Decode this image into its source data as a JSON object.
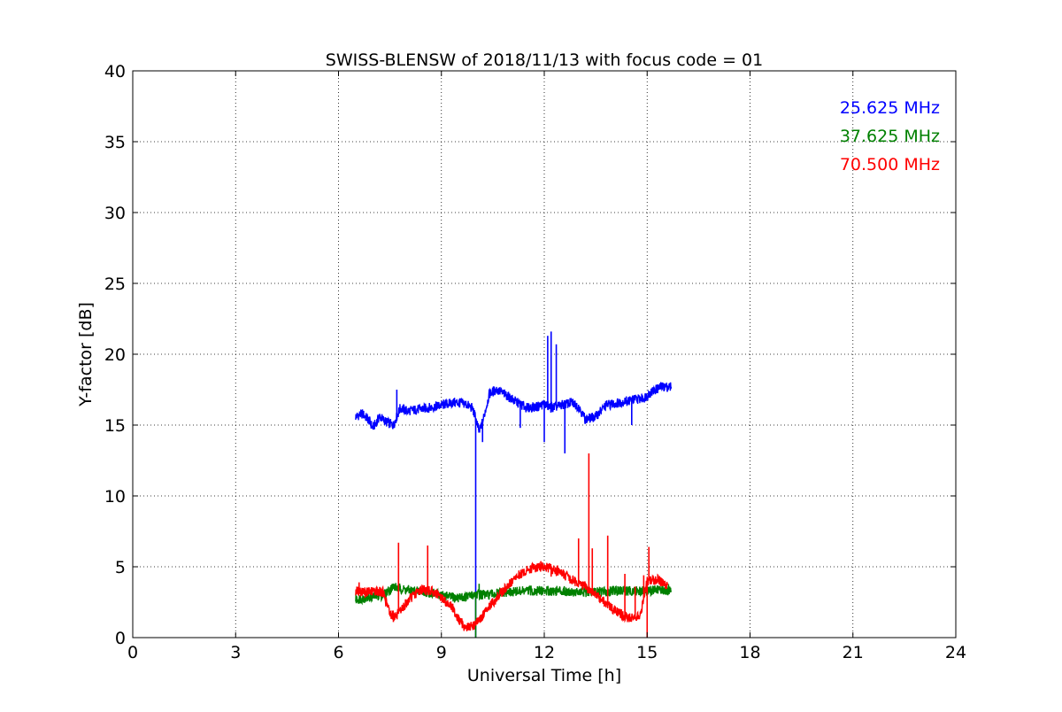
{
  "chart_data": {
    "type": "line",
    "title": "SWISS-BLENSW of 2018/11/13 with focus code = 01",
    "xlabel": "Universal Time [h]",
    "ylabel": "Y-factor [dB]",
    "xlim": [
      0,
      24
    ],
    "ylim": [
      0,
      40
    ],
    "xticks": [
      0,
      3,
      6,
      9,
      12,
      15,
      18,
      21,
      24
    ],
    "yticks": [
      0,
      5,
      10,
      15,
      20,
      25,
      30,
      35,
      40
    ],
    "grid": true,
    "legend_position": "top-right",
    "series": [
      {
        "name": "25.625 MHz",
        "color": "#0000ff",
        "points": [
          [
            6.5,
            15.6
          ],
          [
            6.7,
            15.8
          ],
          [
            6.9,
            15.3
          ],
          [
            7.0,
            14.8
          ],
          [
            7.2,
            15.6
          ],
          [
            7.4,
            15.2
          ],
          [
            7.6,
            15.0
          ],
          [
            7.8,
            16.2
          ],
          [
            8.0,
            16.0
          ],
          [
            8.3,
            16.1
          ],
          [
            8.6,
            16.2
          ],
          [
            9.0,
            16.4
          ],
          [
            9.4,
            16.6
          ],
          [
            9.7,
            16.5
          ],
          [
            9.9,
            16.2
          ],
          [
            10.0,
            15.5
          ],
          [
            10.1,
            14.5
          ],
          [
            10.2,
            15.2
          ],
          [
            10.4,
            17.2
          ],
          [
            10.6,
            17.5
          ],
          [
            10.9,
            17.1
          ],
          [
            11.2,
            16.6
          ],
          [
            11.5,
            16.2
          ],
          [
            11.8,
            16.3
          ],
          [
            12.0,
            16.5
          ],
          [
            12.2,
            16.2
          ],
          [
            12.5,
            16.4
          ],
          [
            12.8,
            16.6
          ],
          [
            13.0,
            16.3
          ],
          [
            13.2,
            15.4
          ],
          [
            13.5,
            15.6
          ],
          [
            13.8,
            16.4
          ],
          [
            14.2,
            16.6
          ],
          [
            14.6,
            16.8
          ],
          [
            14.9,
            16.9
          ],
          [
            15.1,
            17.3
          ],
          [
            15.4,
            17.7
          ],
          [
            15.7,
            17.7
          ]
        ],
        "spikes": [
          [
            7.7,
            17.5
          ],
          [
            10.0,
            0
          ],
          [
            10.2,
            13.8
          ],
          [
            11.3,
            14.8
          ],
          [
            12.0,
            13.8
          ],
          [
            12.1,
            21.3
          ],
          [
            12.2,
            21.6
          ],
          [
            12.35,
            20.7
          ],
          [
            12.6,
            13.0
          ],
          [
            14.55,
            15.0
          ]
        ]
      },
      {
        "name": "37.625 MHz",
        "color": "#008000",
        "points": [
          [
            6.5,
            2.7
          ],
          [
            6.8,
            2.8
          ],
          [
            7.0,
            2.9
          ],
          [
            7.3,
            3.0
          ],
          [
            7.6,
            3.6
          ],
          [
            7.9,
            3.4
          ],
          [
            8.2,
            3.3
          ],
          [
            8.6,
            3.2
          ],
          [
            9.0,
            3.0
          ],
          [
            9.4,
            2.8
          ],
          [
            9.8,
            2.9
          ],
          [
            10.0,
            3.1
          ],
          [
            10.3,
            3.0
          ],
          [
            10.6,
            3.1
          ],
          [
            11.0,
            3.2
          ],
          [
            11.5,
            3.3
          ],
          [
            12.0,
            3.3
          ],
          [
            12.5,
            3.3
          ],
          [
            13.0,
            3.2
          ],
          [
            13.5,
            3.2
          ],
          [
            14.0,
            3.3
          ],
          [
            14.5,
            3.3
          ],
          [
            15.0,
            3.3
          ],
          [
            15.4,
            3.4
          ],
          [
            15.7,
            3.3
          ]
        ],
        "spikes": [
          [
            10.0,
            0
          ],
          [
            10.1,
            3.8
          ]
        ]
      },
      {
        "name": "70.500 MHz",
        "color": "#ff0000",
        "points": [
          [
            6.5,
            3.3
          ],
          [
            6.8,
            3.2
          ],
          [
            7.1,
            3.3
          ],
          [
            7.3,
            3.2
          ],
          [
            7.5,
            1.7
          ],
          [
            7.7,
            1.5
          ],
          [
            7.9,
            2.2
          ],
          [
            8.1,
            2.8
          ],
          [
            8.4,
            3.4
          ],
          [
            8.7,
            3.3
          ],
          [
            9.0,
            2.8
          ],
          [
            9.3,
            2.2
          ],
          [
            9.5,
            1.3
          ],
          [
            9.7,
            0.7
          ],
          [
            9.9,
            0.8
          ],
          [
            10.1,
            1.2
          ],
          [
            10.4,
            2.2
          ],
          [
            10.8,
            3.3
          ],
          [
            11.2,
            4.3
          ],
          [
            11.6,
            4.9
          ],
          [
            12.0,
            5.0
          ],
          [
            12.4,
            4.7
          ],
          [
            12.8,
            4.1
          ],
          [
            13.2,
            3.6
          ],
          [
            13.6,
            2.8
          ],
          [
            14.0,
            2.0
          ],
          [
            14.4,
            1.4
          ],
          [
            14.8,
            1.5
          ],
          [
            15.0,
            4.0
          ],
          [
            15.3,
            4.1
          ],
          [
            15.6,
            3.7
          ]
        ],
        "spikes": [
          [
            6.6,
            3.9
          ],
          [
            7.6,
            1.1
          ],
          [
            7.75,
            6.7
          ],
          [
            8.6,
            6.5
          ],
          [
            11.9,
            5.4
          ],
          [
            12.2,
            4.3
          ],
          [
            13.0,
            7.0
          ],
          [
            13.3,
            13.0
          ],
          [
            13.4,
            6.3
          ],
          [
            13.85,
            7.2
          ],
          [
            14.35,
            4.5
          ],
          [
            14.65,
            3.6
          ],
          [
            14.9,
            4.4
          ],
          [
            15.0,
            0
          ],
          [
            15.05,
            6.4
          ]
        ]
      }
    ]
  }
}
